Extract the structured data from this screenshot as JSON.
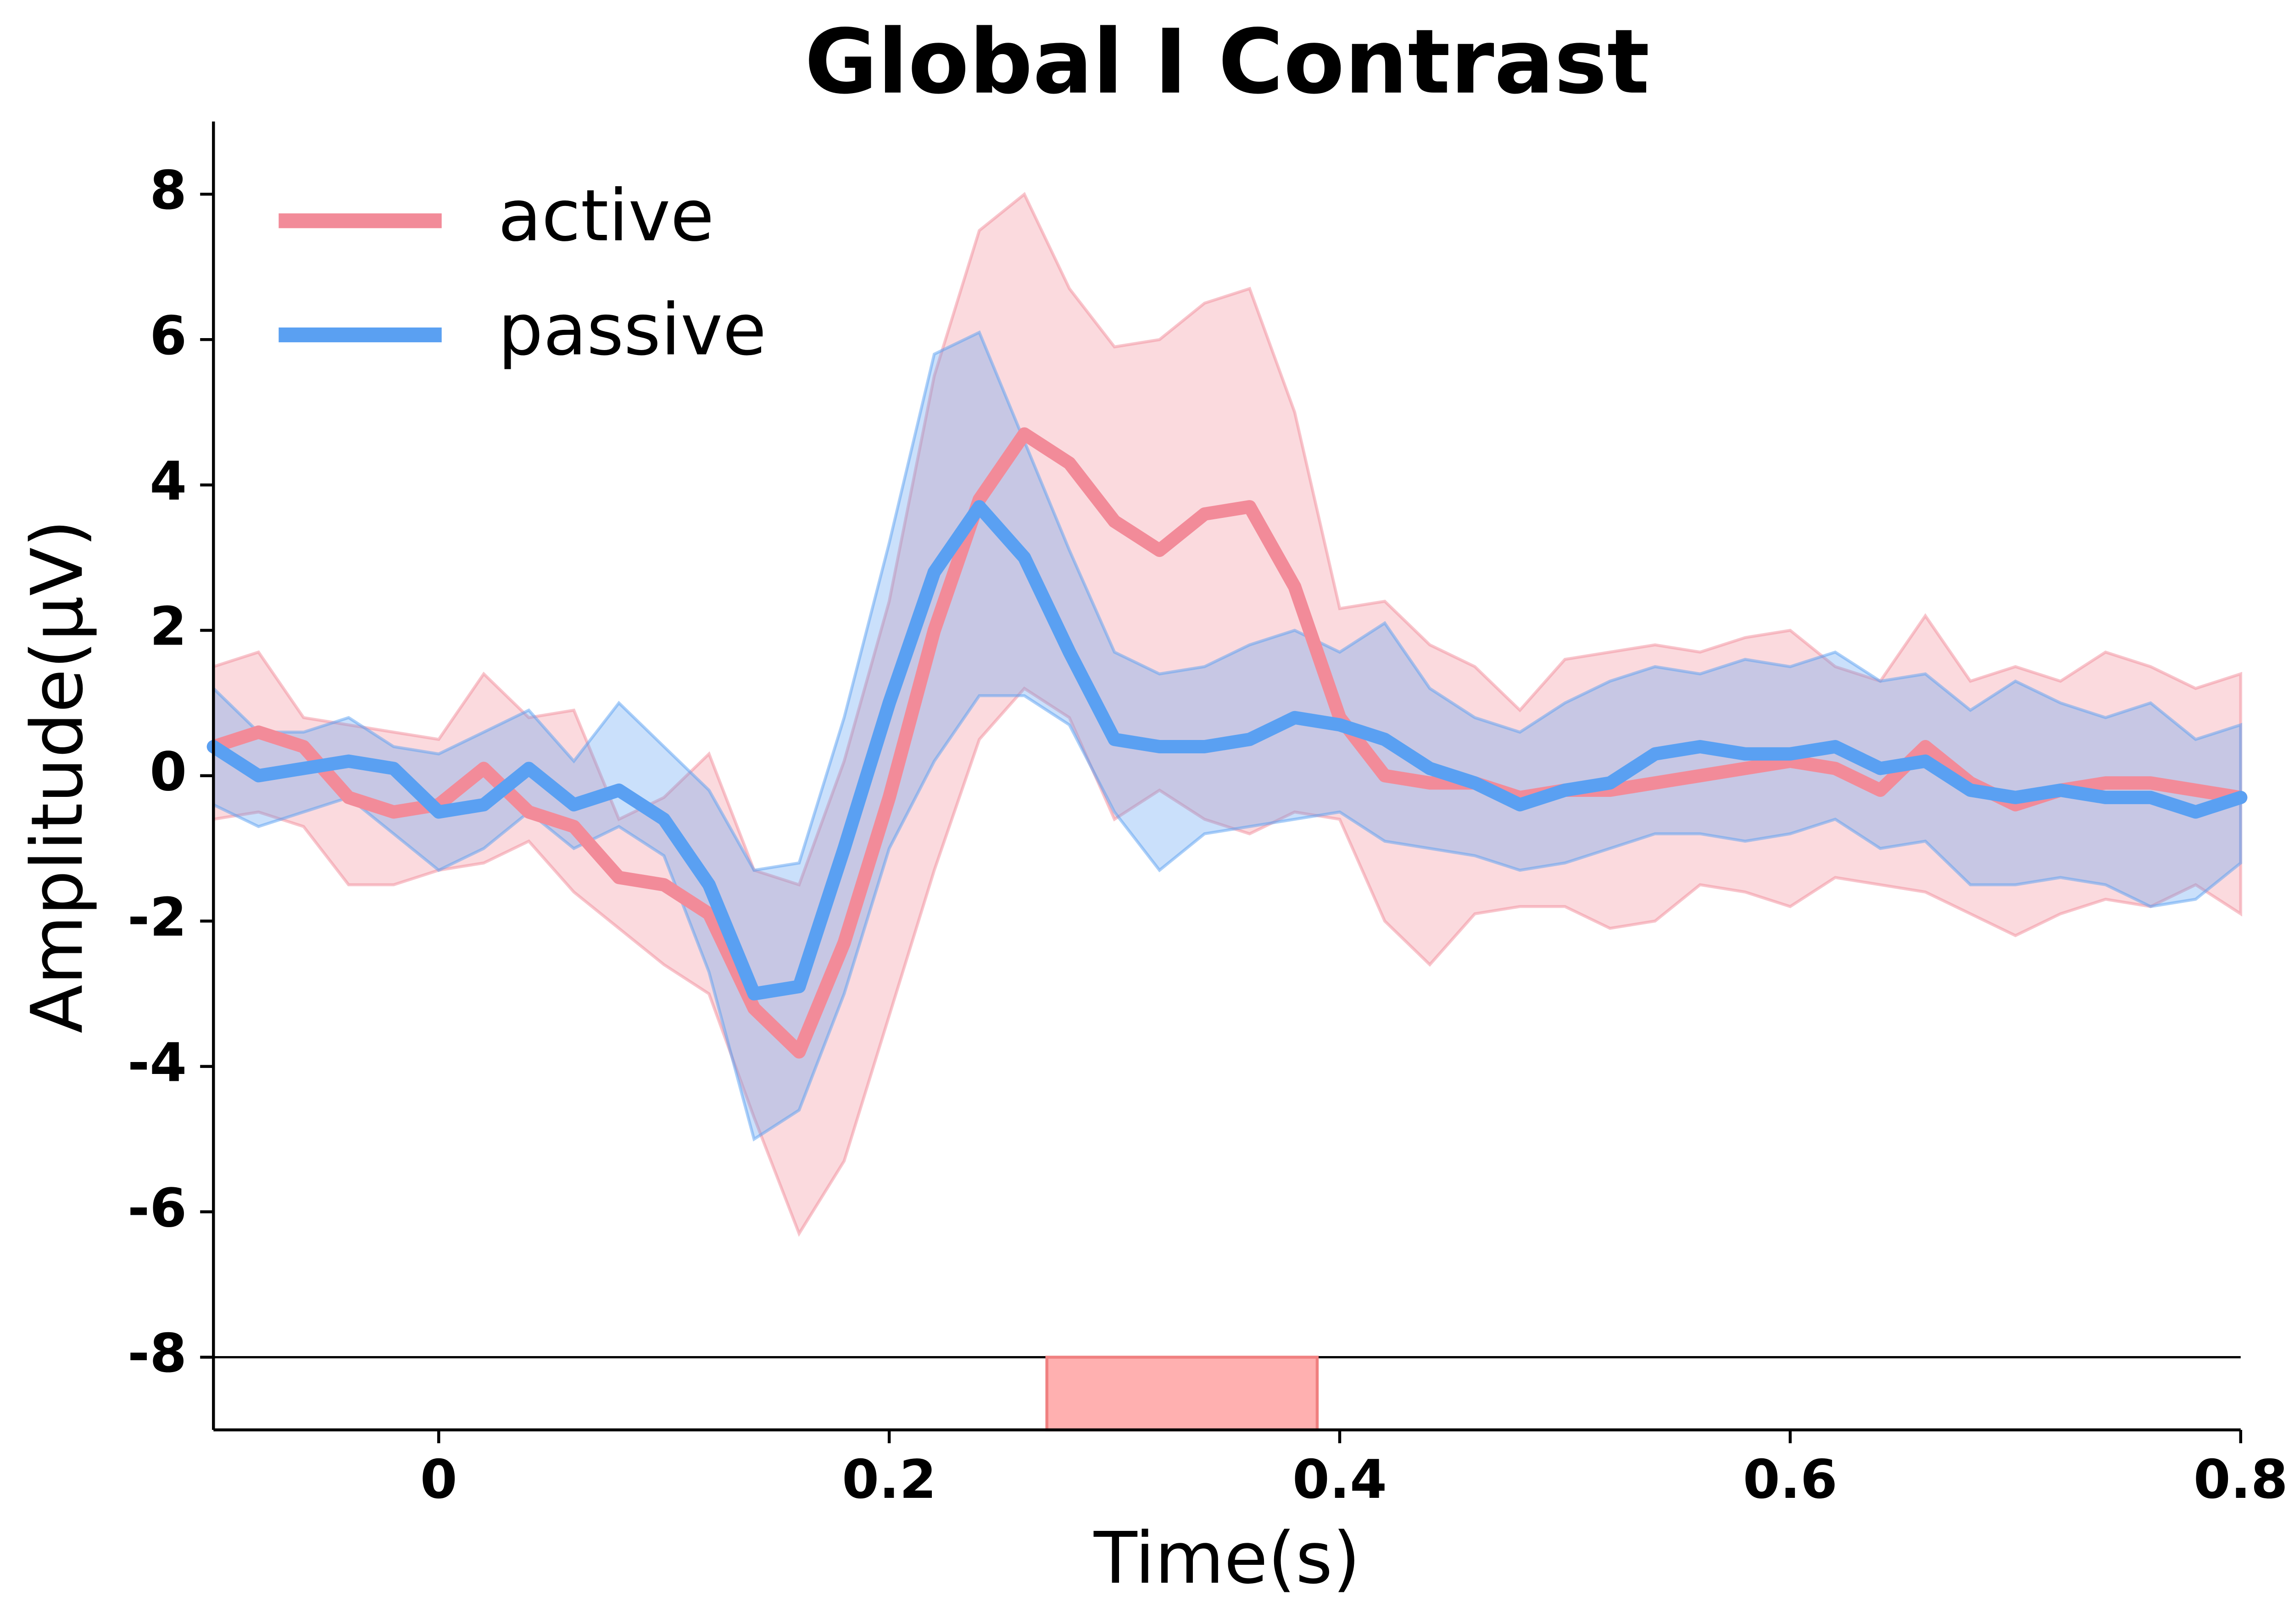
{
  "chart_data": {
    "type": "line",
    "title": "Global I Contrast",
    "xlabel": "Time(s)",
    "ylabel": "Amplitude(μV)",
    "x": [
      -0.1,
      -0.08,
      -0.06,
      -0.04,
      -0.02,
      0,
      0.02,
      0.04,
      0.06,
      0.08,
      0.1,
      0.12,
      0.14,
      0.16,
      0.18,
      0.2,
      0.22,
      0.24,
      0.26,
      0.28,
      0.3,
      0.32,
      0.34,
      0.36,
      0.38,
      0.4,
      0.42,
      0.44,
      0.46,
      0.48,
      0.5,
      0.52,
      0.54,
      0.56,
      0.58,
      0.6,
      0.62,
      0.64,
      0.66,
      0.68,
      0.7,
      0.72,
      0.74,
      0.76,
      0.78,
      0.8
    ],
    "series": [
      {
        "name": "active",
        "color": "#f28b99",
        "values": [
          0.4,
          0.6,
          0.4,
          -0.3,
          -0.5,
          -0.4,
          0.1,
          -0.5,
          -0.7,
          -1.4,
          -1.5,
          -1.9,
          -3.2,
          -3.8,
          -2.3,
          -0.3,
          2.0,
          3.8,
          4.7,
          4.3,
          3.5,
          3.1,
          3.6,
          3.7,
          2.6,
          0.8,
          0.0,
          -0.1,
          -0.1,
          -0.3,
          -0.2,
          -0.2,
          -0.1,
          0.0,
          0.1,
          0.2,
          0.1,
          -0.2,
          0.4,
          -0.1,
          -0.4,
          -0.2,
          -0.1,
          -0.1,
          -0.2,
          -0.3
        ],
        "lower": [
          -0.6,
          -0.5,
          -0.7,
          -1.5,
          -1.5,
          -1.3,
          -1.2,
          -0.9,
          -1.6,
          -2.1,
          -2.6,
          -3.0,
          -4.7,
          -6.3,
          -5.3,
          -3.3,
          -1.3,
          0.5,
          1.2,
          0.8,
          -0.6,
          -0.2,
          -0.6,
          -0.8,
          -0.5,
          -0.6,
          -2.0,
          -2.6,
          -1.9,
          -1.8,
          -1.8,
          -2.1,
          -2.0,
          -1.5,
          -1.6,
          -1.8,
          -1.4,
          -1.5,
          -1.6,
          -1.9,
          -2.2,
          -1.9,
          -1.7,
          -1.8,
          -1.5,
          -1.9
        ],
        "upper": [
          1.5,
          1.7,
          0.8,
          0.7,
          0.6,
          0.5,
          1.4,
          0.8,
          0.9,
          -0.6,
          -0.3,
          0.3,
          -1.3,
          -1.5,
          0.2,
          2.4,
          5.5,
          7.5,
          8.0,
          6.7,
          5.9,
          6.0,
          6.5,
          6.7,
          5.0,
          2.3,
          2.4,
          1.8,
          1.5,
          0.9,
          1.6,
          1.7,
          1.8,
          1.7,
          1.9,
          2.0,
          1.5,
          1.3,
          2.2,
          1.3,
          1.5,
          1.3,
          1.7,
          1.5,
          1.2,
          1.4
        ]
      },
      {
        "name": "passive",
        "color": "#5aa0f2",
        "values": [
          0.4,
          0.0,
          0.1,
          0.2,
          0.1,
          -0.5,
          -0.4,
          0.1,
          -0.4,
          -0.2,
          -0.6,
          -1.5,
          -3.0,
          -2.9,
          -1.0,
          1.0,
          2.8,
          3.7,
          3.0,
          1.7,
          0.5,
          0.4,
          0.4,
          0.5,
          0.8,
          0.7,
          0.5,
          0.1,
          -0.1,
          -0.4,
          -0.2,
          -0.1,
          0.3,
          0.4,
          0.3,
          0.3,
          0.4,
          0.1,
          0.2,
          -0.2,
          -0.3,
          -0.2,
          -0.3,
          -0.3,
          -0.5,
          -0.3
        ],
        "lower": [
          -0.4,
          -0.7,
          -0.5,
          -0.3,
          -0.8,
          -1.3,
          -1.0,
          -0.5,
          -1.0,
          -0.7,
          -1.1,
          -2.7,
          -5.0,
          -4.6,
          -3.0,
          -1.0,
          0.2,
          1.1,
          1.1,
          0.7,
          -0.5,
          -1.3,
          -0.8,
          -0.7,
          -0.6,
          -0.5,
          -0.9,
          -1.0,
          -1.1,
          -1.3,
          -1.2,
          -1.0,
          -0.8,
          -0.8,
          -0.9,
          -0.8,
          -0.6,
          -1.0,
          -0.9,
          -1.5,
          -1.5,
          -1.4,
          -1.5,
          -1.8,
          -1.7,
          -1.2
        ],
        "upper": [
          1.2,
          0.6,
          0.6,
          0.8,
          0.4,
          0.3,
          0.6,
          0.9,
          0.2,
          1.0,
          0.4,
          -0.2,
          -1.3,
          -1.2,
          0.8,
          3.2,
          5.8,
          6.1,
          4.6,
          3.1,
          1.7,
          1.4,
          1.5,
          1.8,
          2.0,
          1.7,
          2.1,
          1.2,
          0.8,
          0.6,
          1.0,
          1.3,
          1.5,
          1.4,
          1.6,
          1.5,
          1.7,
          1.3,
          1.4,
          0.9,
          1.3,
          1.0,
          0.8,
          1.0,
          0.5,
          0.7
        ]
      }
    ],
    "xlim": [
      -0.1,
      0.8
    ],
    "ylim": [
      -9,
      9
    ],
    "xticks": [
      0,
      0.2,
      0.4,
      0.6,
      0.8
    ],
    "yticks": [
      -8,
      -6,
      -4,
      -2,
      0,
      2,
      4,
      6,
      8
    ],
    "hline": -8,
    "significant_window": [
      0.27,
      0.39
    ],
    "significant_color": "#ffb0b0",
    "legend": "upper left",
    "grid": false
  }
}
